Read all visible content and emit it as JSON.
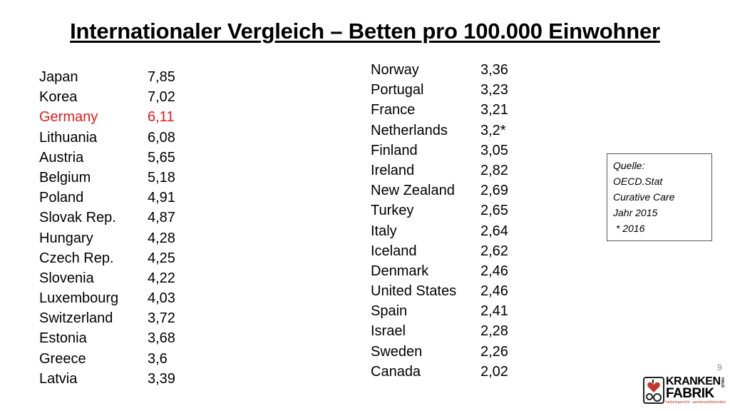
{
  "title": "Internationaler Vergleich – Betten pro 100.000 Einwohner",
  "left_column": [
    {
      "country": "Japan",
      "value": "7,85"
    },
    {
      "country": "Korea",
      "value": "7,02"
    },
    {
      "country": "Germany",
      "value": "6,11",
      "highlight": true
    },
    {
      "country": "Lithuania",
      "value": "6,08"
    },
    {
      "country": "Austria",
      "value": "5,65"
    },
    {
      "country": "Belgium",
      "value": "5,18"
    },
    {
      "country": "Poland",
      "value": "4,91"
    },
    {
      "country": "Slovak Rep.",
      "value": "4,87"
    },
    {
      "country": "Hungary",
      "value": "4,28"
    },
    {
      "country": "Czech Rep.",
      "value": "4,25"
    },
    {
      "country": "Slovenia",
      "value": "4,22"
    },
    {
      "country": "Luxembourg",
      "value": "4,03"
    },
    {
      "country": "Switzerland",
      "value": "3,72"
    },
    {
      "country": "Estonia",
      "value": "3,68"
    },
    {
      "country": "Greece",
      "value": "3,6"
    },
    {
      "country": "Latvia",
      "value": "3,39"
    }
  ],
  "right_column": [
    {
      "country": "Norway",
      "value": "3,36"
    },
    {
      "country": "Portugal",
      "value": "3,23"
    },
    {
      "country": "France",
      "value": "3,21"
    },
    {
      "country": "Netherlands",
      "value": "3,2*"
    },
    {
      "country": "Finland",
      "value": "3,05"
    },
    {
      "country": "Ireland",
      "value": "2,82"
    },
    {
      "country": "New Zealand",
      "value": "2,69"
    },
    {
      "country": "Turkey",
      "value": "2,65"
    },
    {
      "country": "Italy",
      "value": "2,64"
    },
    {
      "country": "Iceland",
      "value": "2,62"
    },
    {
      "country": "Denmark",
      "value": "2,46"
    },
    {
      "country": "United States",
      "value": "2,46"
    },
    {
      "country": "Spain",
      "value": "2,41"
    },
    {
      "country": "Israel",
      "value": "2,28"
    },
    {
      "country": "Sweden",
      "value": "2,26"
    },
    {
      "country": "Canada",
      "value": "2,02"
    }
  ],
  "source_box": {
    "lines": [
      "Quelle:",
      "OECD.Stat",
      "Curative Care",
      "Jahr 2015",
      " * 2016"
    ]
  },
  "page_number": "9",
  "logo": {
    "word1": "KRANKEN",
    "word2": "FABRIK",
    "tagline": "bedarfsgerecht · gemeinwohlorientiert",
    "small": "HAUS"
  },
  "colors": {
    "highlight": "#e31b1b",
    "text": "#000000",
    "logo_accent": "#c0392b"
  },
  "icons": [
    "logo-emblem-icon"
  ]
}
